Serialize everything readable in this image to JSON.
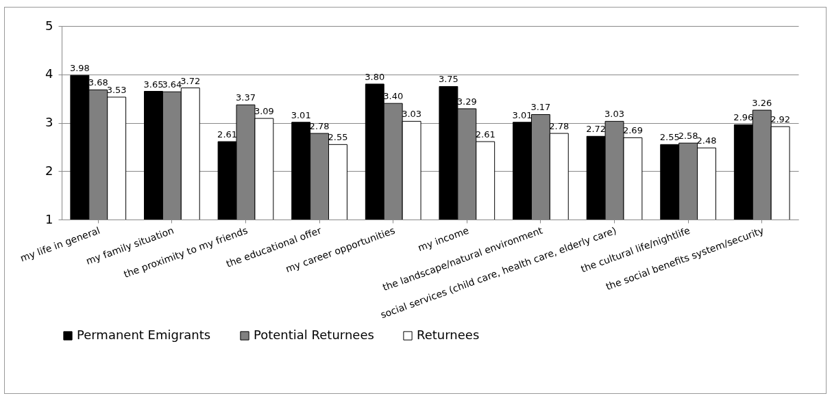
{
  "chart_data": {
    "type": "bar",
    "categories": [
      "my life in general",
      "my family situation",
      "the proximity to my friends",
      "the educational offer",
      "my career opportunities",
      "my income",
      "the landscape/natural environment",
      "social services (child care, health care, elderly care)",
      "the cultural life/nightlife",
      "the social benefits system/security"
    ],
    "series": [
      {
        "name": "Permanent Emigrants",
        "color": "#000000",
        "values": [
          3.98,
          3.65,
          2.61,
          3.01,
          3.8,
          3.75,
          3.01,
          2.72,
          2.55,
          2.96
        ],
        "value_labels": [
          "3.98",
          "3.65",
          "2.61",
          "3.01",
          "3.80",
          "3.75",
          "3.01",
          "2.72",
          "2.55",
          "2.96"
        ]
      },
      {
        "name": "Potential Returnees",
        "color": "#808080",
        "values": [
          3.68,
          3.64,
          3.37,
          2.78,
          3.4,
          3.29,
          3.17,
          3.03,
          2.58,
          3.26
        ],
        "value_labels": [
          "3.68",
          "3.64",
          "3.37",
          "2.78",
          "3.40",
          "3.29",
          "3.17",
          "3.03",
          "2.58",
          "3.26"
        ]
      },
      {
        "name": "Returnees",
        "color": "#ffffff",
        "values": [
          3.53,
          3.72,
          3.09,
          2.55,
          3.03,
          2.61,
          2.78,
          2.69,
          2.48,
          2.92
        ],
        "value_labels": [
          "3.53",
          "3.72",
          "3.09",
          "2.55",
          "3.03",
          "2.61",
          "2.78",
          "2.69",
          "2.48",
          "2.92"
        ]
      }
    ],
    "ylim": [
      1,
      5
    ],
    "yticks": [
      1,
      2,
      3,
      4,
      5
    ],
    "grid": "y",
    "legend": "bottom"
  }
}
